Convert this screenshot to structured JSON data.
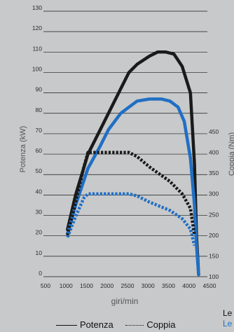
{
  "chart_data": {
    "type": "line",
    "xlabel": "giri/min",
    "ylabel": "Potenza (kW)",
    "y2label": "Coppia (Nm)",
    "x_ticks": [
      500,
      1000,
      1500,
      2000,
      2500,
      3000,
      3500,
      4000,
      4500
    ],
    "y_ticks": [
      0,
      10,
      20,
      30,
      40,
      50,
      60,
      70,
      80,
      90,
      100,
      110,
      120,
      130
    ],
    "y2_ticks": [
      100,
      150,
      200,
      250,
      300,
      350,
      400,
      450
    ],
    "xlim": [
      500,
      4500
    ],
    "ylim": [
      0,
      130
    ],
    "y2lim": [
      100,
      450
    ],
    "grid": "horizontal",
    "series": [
      {
        "name": "Potenza",
        "axis": "left",
        "style": "solid",
        "color": "#1a1a1a",
        "x": [
          1000,
          1200,
          1500,
          1800,
          2000,
          2300,
          2500,
          2700,
          3000,
          3200,
          3400,
          3600,
          3800,
          4000,
          4100,
          4150,
          4200
        ],
        "y": [
          23,
          40,
          60,
          72,
          80,
          92,
          100,
          104,
          108,
          110,
          110,
          109,
          103,
          90,
          55,
          20,
          1
        ]
      },
      {
        "name": "Potenza",
        "axis": "left",
        "style": "solid",
        "color": "#1f6fc4",
        "x": [
          1000,
          1200,
          1500,
          1800,
          2000,
          2300,
          2500,
          2700,
          3000,
          3300,
          3500,
          3700,
          3850,
          4000,
          4100,
          4150,
          4200
        ],
        "y": [
          21,
          35,
          53,
          64,
          72,
          80,
          83,
          86,
          87,
          87,
          86,
          83,
          76,
          58,
          35,
          15,
          1
        ]
      },
      {
        "name": "Coppia",
        "axis": "right",
        "style": "dotted",
        "color": "#1a1a1a",
        "x": [
          1000,
          1200,
          1400,
          1500,
          2000,
          2500,
          2700,
          3000,
          3500,
          3800,
          4000,
          4100
        ],
        "y": [
          200,
          280,
          365,
          400,
          400,
          400,
          390,
          365,
          330,
          300,
          265,
          200
        ]
      },
      {
        "name": "Coppia",
        "axis": "right",
        "style": "dotted",
        "color": "#1f6fc4",
        "x": [
          1000,
          1200,
          1400,
          1500,
          2000,
          2500,
          2700,
          3000,
          3500,
          3800,
          4000,
          4100
        ],
        "y": [
          195,
          245,
          290,
          300,
          300,
          300,
          295,
          280,
          260,
          240,
          215,
          175
        ]
      }
    ]
  },
  "legend": {
    "items": [
      {
        "label": "Potenza",
        "style": "solid"
      },
      {
        "label": "Coppia",
        "style": "dotted"
      }
    ]
  },
  "corner": {
    "top": "Le",
    "bottom": "Le",
    "bottom_color": "#1f6fc4"
  }
}
